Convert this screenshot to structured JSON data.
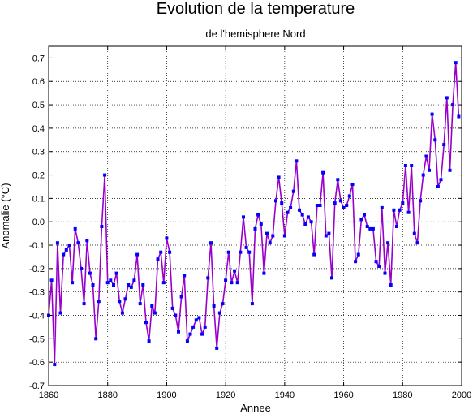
{
  "chart_data": {
    "type": "line",
    "title": "Evolution de la temperature",
    "subtitle": "de l'hemisphere Nord",
    "xlabel": "Annee",
    "ylabel": "Anomalie (°C)",
    "xlim": [
      1860,
      2000
    ],
    "ylim": [
      -0.7,
      0.75
    ],
    "xticks": [
      1860,
      1880,
      1900,
      1920,
      1940,
      1960,
      1980,
      2000
    ],
    "yticks": [
      -0.7,
      -0.6,
      -0.5,
      -0.4,
      -0.3,
      -0.2,
      -0.1,
      0.0,
      0.1,
      0.2,
      0.3,
      0.4,
      0.5,
      0.6,
      0.7
    ],
    "ytick_labels": [
      "-0.7",
      "-0.6",
      "-0.5",
      "-0.4",
      "-0.3",
      "-0.2",
      "-0.1",
      "0.0",
      "0.1",
      "0.2",
      "0.3",
      "0.4",
      "0.5",
      "0.6",
      "0.7"
    ],
    "grid": true,
    "line_color": "#9900cc",
    "marker_color": "#0000ff",
    "x": [
      1860,
      1861,
      1862,
      1863,
      1864,
      1865,
      1866,
      1867,
      1868,
      1869,
      1870,
      1871,
      1872,
      1873,
      1874,
      1875,
      1876,
      1877,
      1878,
      1879,
      1880,
      1881,
      1882,
      1883,
      1884,
      1885,
      1886,
      1887,
      1888,
      1889,
      1890,
      1891,
      1892,
      1893,
      1894,
      1895,
      1896,
      1897,
      1898,
      1899,
      1900,
      1901,
      1902,
      1903,
      1904,
      1905,
      1906,
      1907,
      1908,
      1909,
      1910,
      1911,
      1912,
      1913,
      1914,
      1915,
      1916,
      1917,
      1918,
      1919,
      1920,
      1921,
      1922,
      1923,
      1924,
      1925,
      1926,
      1927,
      1928,
      1929,
      1930,
      1931,
      1932,
      1933,
      1934,
      1935,
      1936,
      1937,
      1938,
      1939,
      1940,
      1941,
      1942,
      1943,
      1944,
      1945,
      1946,
      1947,
      1948,
      1949,
      1950,
      1951,
      1952,
      1953,
      1954,
      1955,
      1956,
      1957,
      1958,
      1959,
      1960,
      1961,
      1962,
      1963,
      1964,
      1965,
      1966,
      1967,
      1968,
      1969,
      1970,
      1971,
      1972,
      1973,
      1974,
      1975,
      1976,
      1977,
      1978,
      1979,
      1980,
      1981,
      1982,
      1983,
      1984,
      1985,
      1986,
      1987,
      1988,
      1989,
      1990,
      1991,
      1992,
      1993,
      1994,
      1995,
      1996,
      1997,
      1998,
      1999
    ],
    "values": [
      -0.4,
      -0.25,
      -0.61,
      -0.09,
      -0.39,
      -0.14,
      -0.12,
      -0.1,
      -0.26,
      -0.03,
      -0.09,
      -0.2,
      -0.35,
      -0.08,
      -0.22,
      -0.27,
      -0.5,
      -0.34,
      -0.02,
      0.2,
      -0.26,
      -0.25,
      -0.27,
      -0.22,
      -0.34,
      -0.39,
      -0.33,
      -0.27,
      -0.28,
      -0.25,
      -0.14,
      -0.35,
      -0.27,
      -0.43,
      -0.51,
      -0.36,
      -0.39,
      -0.16,
      -0.13,
      -0.26,
      -0.07,
      -0.13,
      -0.37,
      -0.4,
      -0.47,
      -0.32,
      -0.23,
      -0.51,
      -0.48,
      -0.45,
      -0.42,
      -0.41,
      -0.48,
      -0.45,
      -0.24,
      -0.09,
      -0.36,
      -0.54,
      -0.39,
      -0.35,
      -0.25,
      -0.13,
      -0.26,
      -0.21,
      -0.26,
      -0.13,
      0.02,
      -0.11,
      -0.13,
      -0.35,
      -0.03,
      0.03,
      -0.01,
      -0.22,
      -0.05,
      -0.09,
      -0.06,
      0.09,
      0.19,
      0.08,
      -0.06,
      0.04,
      0.06,
      0.13,
      0.26,
      0.05,
      0.03,
      -0.01,
      0.02,
      0.0,
      -0.14,
      0.07,
      0.07,
      0.21,
      -0.06,
      -0.05,
      -0.24,
      0.08,
      0.18,
      0.09,
      0.06,
      0.07,
      0.11,
      0.16,
      -0.17,
      -0.14,
      0.01,
      0.03,
      -0.02,
      -0.03,
      -0.03,
      -0.17,
      -0.19,
      0.06,
      -0.22,
      -0.09,
      -0.27,
      0.05,
      -0.02,
      0.05,
      0.08,
      0.24,
      0.04,
      0.24,
      -0.05,
      -0.09,
      0.09,
      0.2,
      0.28,
      0.22,
      0.46,
      0.35,
      0.15,
      0.18,
      0.33,
      0.53,
      0.22,
      0.5,
      0.68,
      0.45
    ]
  }
}
